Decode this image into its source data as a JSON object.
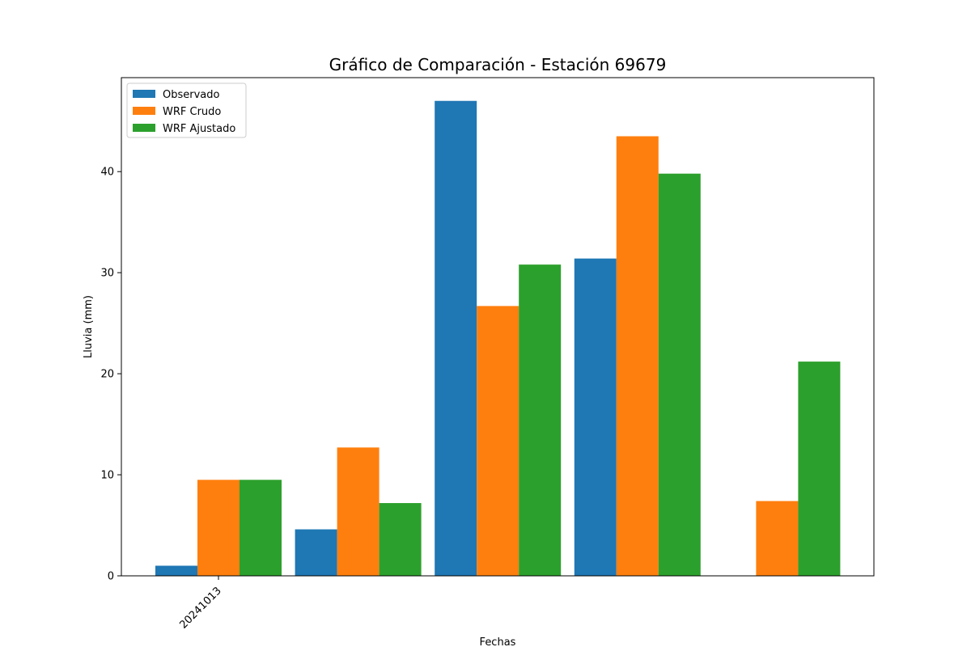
{
  "chart_data": {
    "type": "bar",
    "title": "Gráfico de Comparación - Estación 69679",
    "xlabel": "Fechas",
    "ylabel": "Lluvia (mm)",
    "categories": [
      "20241013",
      "",
      "",
      "",
      ""
    ],
    "series": [
      {
        "name": "Observado",
        "color": "#1f77b4",
        "values": [
          1.0,
          4.6,
          47.0,
          31.4,
          0.0
        ]
      },
      {
        "name": "WRF Crudo",
        "color": "#ff7f0e",
        "values": [
          9.5,
          12.7,
          26.7,
          43.5,
          7.4
        ]
      },
      {
        "name": "WRF Ajustado",
        "color": "#2ca02c",
        "values": [
          9.5,
          7.2,
          30.8,
          39.8,
          21.2
        ]
      }
    ],
    "ylim": [
      0,
      49.3
    ],
    "yticks": [
      0,
      10,
      20,
      30,
      40
    ],
    "grid": false,
    "legend_position": "top-left"
  }
}
